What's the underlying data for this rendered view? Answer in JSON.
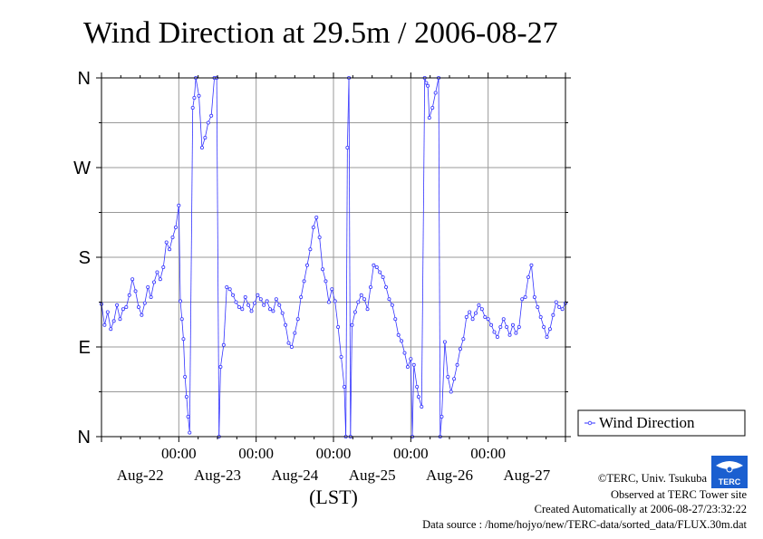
{
  "chart_data": {
    "type": "line",
    "title": "Wind Direction at 29.5m / 2006-08-27",
    "xlabel": "(LST)",
    "ylabel": "",
    "y_tick_labels": [
      "N",
      "E",
      "S",
      "W",
      "N"
    ],
    "y_tick_values_deg": [
      0,
      90,
      180,
      270,
      360
    ],
    "ylim": [
      0,
      360
    ],
    "xlim_days": [
      0,
      6
    ],
    "x_time_labels": [
      "00:00",
      "00:00",
      "00:00",
      "00:00",
      "00:00"
    ],
    "x_date_labels": [
      "Aug-22",
      "Aug-23",
      "Aug-24",
      "Aug-25",
      "Aug-26",
      "Aug-27"
    ],
    "grid": true,
    "legend_position": "right",
    "series": [
      {
        "name": "Wind Direction",
        "color": "#3333ff",
        "points": [
          [
            0.0,
            133
          ],
          [
            0.04,
            112
          ],
          [
            0.08,
            125
          ],
          [
            0.12,
            108
          ],
          [
            0.16,
            116
          ],
          [
            0.2,
            132
          ],
          [
            0.24,
            118
          ],
          [
            0.28,
            128
          ],
          [
            0.32,
            130
          ],
          [
            0.36,
            142
          ],
          [
            0.4,
            158
          ],
          [
            0.44,
            146
          ],
          [
            0.48,
            130
          ],
          [
            0.52,
            122
          ],
          [
            0.56,
            134
          ],
          [
            0.6,
            150
          ],
          [
            0.64,
            140
          ],
          [
            0.68,
            155
          ],
          [
            0.72,
            165
          ],
          [
            0.76,
            158
          ],
          [
            0.8,
            170
          ],
          [
            0.84,
            195
          ],
          [
            0.88,
            188
          ],
          [
            0.92,
            200
          ],
          [
            0.96,
            210
          ],
          [
            1.0,
            232
          ],
          [
            1.02,
            136
          ],
          [
            1.04,
            118
          ],
          [
            1.06,
            98
          ],
          [
            1.08,
            60
          ],
          [
            1.1,
            40
          ],
          [
            1.12,
            20
          ],
          [
            1.14,
            4
          ],
          [
            1.18,
            330
          ],
          [
            1.2,
            340
          ],
          [
            1.22,
            360
          ],
          [
            1.26,
            342
          ],
          [
            1.3,
            290
          ],
          [
            1.34,
            300
          ],
          [
            1.38,
            315
          ],
          [
            1.42,
            322
          ],
          [
            1.46,
            360
          ],
          [
            1.49,
            360
          ],
          [
            1.52,
            0
          ],
          [
            1.54,
            70
          ],
          [
            1.58,
            92
          ],
          [
            1.62,
            150
          ],
          [
            1.66,
            148
          ],
          [
            1.7,
            142
          ],
          [
            1.74,
            135
          ],
          [
            1.78,
            130
          ],
          [
            1.82,
            128
          ],
          [
            1.86,
            140
          ],
          [
            1.9,
            132
          ],
          [
            1.94,
            126
          ],
          [
            1.98,
            134
          ],
          [
            2.02,
            142
          ],
          [
            2.06,
            138
          ],
          [
            2.1,
            132
          ],
          [
            2.14,
            136
          ],
          [
            2.18,
            128
          ],
          [
            2.22,
            126
          ],
          [
            2.26,
            138
          ],
          [
            2.3,
            132
          ],
          [
            2.34,
            124
          ],
          [
            2.38,
            112
          ],
          [
            2.42,
            94
          ],
          [
            2.46,
            90
          ],
          [
            2.5,
            104
          ],
          [
            2.54,
            118
          ],
          [
            2.58,
            140
          ],
          [
            2.62,
            156
          ],
          [
            2.66,
            172
          ],
          [
            2.7,
            188
          ],
          [
            2.74,
            210
          ],
          [
            2.78,
            220
          ],
          [
            2.82,
            200
          ],
          [
            2.86,
            168
          ],
          [
            2.9,
            156
          ],
          [
            2.94,
            135
          ],
          [
            2.98,
            148
          ],
          [
            3.02,
            136
          ],
          [
            3.06,
            110
          ],
          [
            3.1,
            80
          ],
          [
            3.14,
            50
          ],
          [
            3.16,
            0
          ],
          [
            3.18,
            290
          ],
          [
            3.2,
            360
          ],
          [
            3.22,
            0
          ],
          [
            3.24,
            112
          ],
          [
            3.28,
            125
          ],
          [
            3.32,
            135
          ],
          [
            3.36,
            142
          ],
          [
            3.4,
            138
          ],
          [
            3.44,
            128
          ],
          [
            3.48,
            150
          ],
          [
            3.52,
            172
          ],
          [
            3.56,
            170
          ],
          [
            3.6,
            165
          ],
          [
            3.64,
            160
          ],
          [
            3.68,
            150
          ],
          [
            3.72,
            138
          ],
          [
            3.76,
            132
          ],
          [
            3.8,
            118
          ],
          [
            3.84,
            102
          ],
          [
            3.88,
            96
          ],
          [
            3.92,
            84
          ],
          [
            3.96,
            70
          ],
          [
            4.0,
            78
          ],
          [
            4.02,
            0
          ],
          [
            4.04,
            72
          ],
          [
            4.08,
            50
          ],
          [
            4.1,
            40
          ],
          [
            4.14,
            30
          ],
          [
            4.18,
            360
          ],
          [
            4.2,
            355
          ],
          [
            4.22,
            352
          ],
          [
            4.24,
            320
          ],
          [
            4.28,
            330
          ],
          [
            4.32,
            345
          ],
          [
            4.36,
            360
          ],
          [
            4.38,
            0
          ],
          [
            4.4,
            20
          ],
          [
            4.44,
            95
          ],
          [
            4.48,
            60
          ],
          [
            4.52,
            45
          ],
          [
            4.56,
            58
          ],
          [
            4.6,
            72
          ],
          [
            4.64,
            88
          ],
          [
            4.68,
            98
          ],
          [
            4.72,
            120
          ],
          [
            4.76,
            125
          ],
          [
            4.8,
            118
          ],
          [
            4.84,
            124
          ],
          [
            4.88,
            132
          ],
          [
            4.92,
            128
          ],
          [
            4.96,
            120
          ],
          [
            5.0,
            118
          ],
          [
            5.04,
            112
          ],
          [
            5.08,
            105
          ],
          [
            5.12,
            100
          ],
          [
            5.16,
            110
          ],
          [
            5.2,
            118
          ],
          [
            5.24,
            110
          ],
          [
            5.28,
            102
          ],
          [
            5.32,
            112
          ],
          [
            5.36,
            104
          ],
          [
            5.4,
            110
          ],
          [
            5.44,
            138
          ],
          [
            5.48,
            140
          ],
          [
            5.52,
            160
          ],
          [
            5.56,
            172
          ],
          [
            5.6,
            140
          ],
          [
            5.64,
            130
          ],
          [
            5.68,
            120
          ],
          [
            5.72,
            110
          ],
          [
            5.76,
            100
          ],
          [
            5.8,
            108
          ],
          [
            5.84,
            122
          ],
          [
            5.88,
            135
          ],
          [
            5.92,
            130
          ],
          [
            5.96,
            128
          ],
          [
            6.0,
            134
          ]
        ]
      }
    ]
  },
  "credits": {
    "copyright": "©TERC, Univ. Tsukuba",
    "observed": "Observed at TERC Tower site",
    "created": "Created Automatically at 2006-08-27/23:32:22",
    "source": "Data source : /home/hojyo/new/TERC-data/sorted_data/FLUX.30m.dat",
    "logo_text": "TERC"
  }
}
